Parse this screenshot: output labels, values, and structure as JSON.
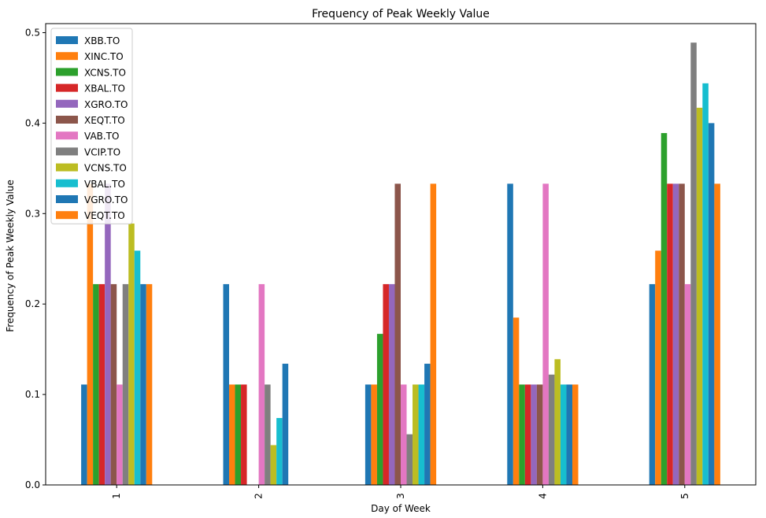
{
  "chart_data": {
    "type": "bar",
    "title": "Frequency of Peak Weekly Value",
    "xlabel": "Day of Week",
    "ylabel": "Frequency of Peak Weekly Value",
    "categories": [
      "1",
      "2",
      "3",
      "4",
      "5"
    ],
    "ylim": [
      0,
      0.51
    ],
    "yticks": [
      "0.0",
      "0.1",
      "0.2",
      "0.3",
      "0.4",
      "0.5"
    ],
    "grid": false,
    "legend_position": "top-left",
    "series": [
      {
        "name": "XBB.TO",
        "color": "#1f77b4",
        "values": [
          0.111,
          0.222,
          0.111,
          0.333,
          0.222
        ]
      },
      {
        "name": "XINC.TO",
        "color": "#ff7f0e",
        "values": [
          0.333,
          0.111,
          0.111,
          0.185,
          0.259
        ]
      },
      {
        "name": "XCNS.TO",
        "color": "#2ca02c",
        "values": [
          0.222,
          0.111,
          0.167,
          0.111,
          0.389
        ]
      },
      {
        "name": "XBAL.TO",
        "color": "#d62728",
        "values": [
          0.222,
          0.111,
          0.222,
          0.111,
          0.333
        ]
      },
      {
        "name": "XGRO.TO",
        "color": "#9467bd",
        "values": [
          0.333,
          0.0,
          0.222,
          0.111,
          0.333
        ]
      },
      {
        "name": "XEQT.TO",
        "color": "#8c564b",
        "values": [
          0.222,
          0.0,
          0.333,
          0.111,
          0.333
        ]
      },
      {
        "name": "VAB.TO",
        "color": "#e377c2",
        "values": [
          0.111,
          0.222,
          0.111,
          0.333,
          0.222
        ]
      },
      {
        "name": "VCIP.TO",
        "color": "#7f7f7f",
        "values": [
          0.222,
          0.111,
          0.056,
          0.122,
          0.489
        ]
      },
      {
        "name": "VCNS.TO",
        "color": "#bcbd22",
        "values": [
          0.289,
          0.044,
          0.111,
          0.139,
          0.417
        ]
      },
      {
        "name": "VBAL.TO",
        "color": "#17becf",
        "values": [
          0.259,
          0.074,
          0.111,
          0.111,
          0.444
        ]
      },
      {
        "name": "VGRO.TO",
        "color": "#1f77b4",
        "values": [
          0.222,
          0.134,
          0.134,
          0.111,
          0.4
        ]
      },
      {
        "name": "VEQT.TO",
        "color": "#ff7f0e",
        "values": [
          0.222,
          0.0,
          0.333,
          0.111,
          0.333
        ]
      }
    ]
  }
}
